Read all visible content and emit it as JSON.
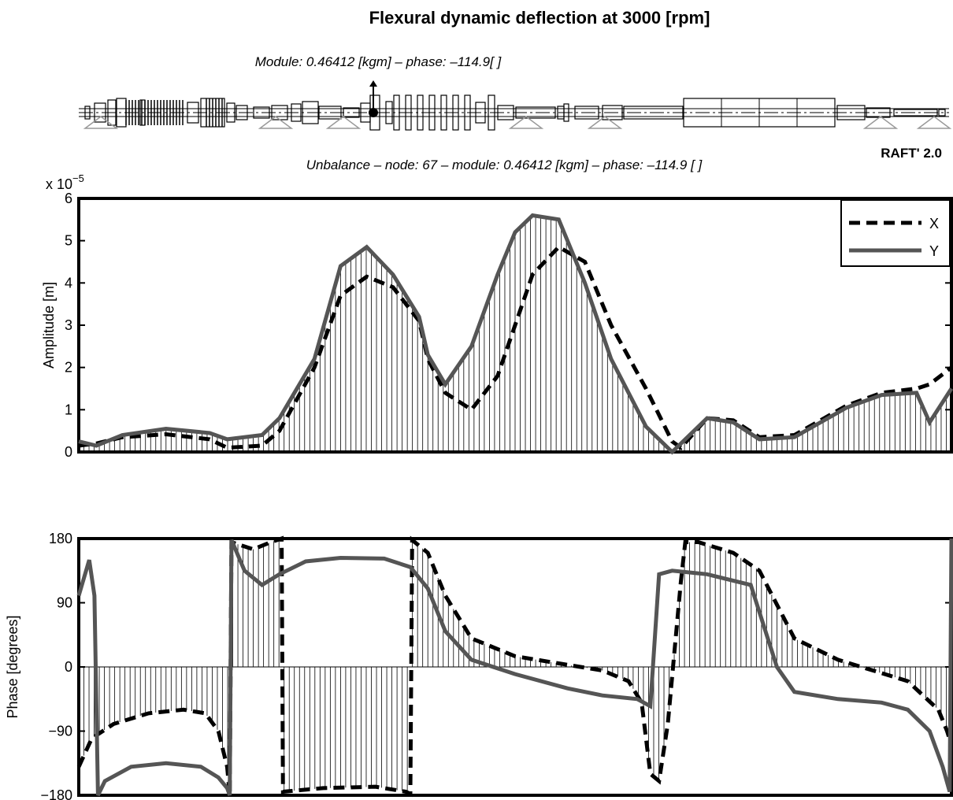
{
  "title": "Flexural dynamic deflection at 3000 [rpm]",
  "module_text": "Module: 0.46412 [kgm] – phase: –114.9[ ]",
  "unbalance_text": "Unbalance – node: 67 – module: 0.46412 [kgm] – phase: –114.9 [   ]",
  "brand": "RAFT' 2.0",
  "chart_data": [
    {
      "type": "line",
      "ylabel": "Amplitude [m]",
      "scale_label": "x 10",
      "scale_exponent": "−5",
      "ylim": [
        0,
        6
      ],
      "yticks": [
        "0",
        "1",
        "2",
        "3",
        "4",
        "5",
        "6"
      ],
      "legend": {
        "position": "top-right",
        "entries": [
          "X",
          "Y"
        ]
      },
      "x": [
        0,
        0.02,
        0.05,
        0.1,
        0.15,
        0.17,
        0.21,
        0.23,
        0.27,
        0.3,
        0.33,
        0.36,
        0.39,
        0.4,
        0.42,
        0.45,
        0.48,
        0.5,
        0.52,
        0.55,
        0.58,
        0.61,
        0.65,
        0.68,
        0.69,
        0.72,
        0.75,
        0.78,
        0.82,
        0.88,
        0.92,
        0.96,
        0.975,
        1.0
      ],
      "series": [
        {
          "name": "X",
          "style": "dashed",
          "color": "#000000",
          "values": [
            0.15,
            0.2,
            0.35,
            0.42,
            0.3,
            0.1,
            0.15,
            0.5,
            2.0,
            3.7,
            4.15,
            3.9,
            3.1,
            2.2,
            1.4,
            1.0,
            1.8,
            3.0,
            4.2,
            4.85,
            4.5,
            3.0,
            1.5,
            0.25,
            0.1,
            0.8,
            0.75,
            0.35,
            0.4,
            1.1,
            1.4,
            1.5,
            1.6,
            2.0
          ]
        },
        {
          "name": "Y",
          "style": "solid",
          "color": "#555555",
          "values": [
            0.25,
            0.15,
            0.4,
            0.55,
            0.45,
            0.3,
            0.4,
            0.8,
            2.2,
            4.4,
            4.85,
            4.2,
            3.2,
            2.3,
            1.6,
            2.5,
            4.2,
            5.2,
            5.6,
            5.5,
            4.0,
            2.2,
            0.6,
            0.0,
            0.2,
            0.8,
            0.7,
            0.3,
            0.35,
            1.05,
            1.35,
            1.4,
            0.7,
            1.5
          ]
        }
      ]
    },
    {
      "type": "line",
      "ylabel": "Phase  [degrees]",
      "ylim": [
        -180,
        180
      ],
      "yticks": [
        "−180",
        "−90",
        "0",
        "90",
        "180"
      ],
      "series": [
        {
          "name": "X",
          "style": "dashed",
          "color": "#000000",
          "points": [
            [
              0,
              -140
            ],
            [
              0.015,
              -100
            ],
            [
              0.04,
              -80
            ],
            [
              0.08,
              -65
            ],
            [
              0.12,
              -60
            ],
            [
              0.145,
              -65
            ],
            [
              0.16,
              -90
            ],
            [
              0.17,
              -140
            ],
            [
              0.173,
              -180
            ],
            [
              0.175,
              175
            ],
            [
              0.2,
              165
            ],
            [
              0.22,
              175
            ],
            [
              0.2325,
              180
            ],
            [
              0.234,
              -175
            ],
            [
              0.28,
              -170
            ],
            [
              0.34,
              -168
            ],
            [
              0.375,
              -175
            ],
            [
              0.38,
              -178
            ],
            [
              0.382,
              178
            ],
            [
              0.4,
              160
            ],
            [
              0.42,
              100
            ],
            [
              0.45,
              40
            ],
            [
              0.5,
              15
            ],
            [
              0.55,
              5
            ],
            [
              0.6,
              -5
            ],
            [
              0.63,
              -20
            ],
            [
              0.645,
              -50
            ],
            [
              0.655,
              -150
            ],
            [
              0.665,
              -160
            ],
            [
              0.675,
              -80
            ],
            [
              0.69,
              120
            ],
            [
              0.695,
              175
            ],
            [
              0.71,
              175
            ],
            [
              0.75,
              160
            ],
            [
              0.78,
              135
            ],
            [
              0.82,
              40
            ],
            [
              0.87,
              10
            ],
            [
              0.91,
              -5
            ],
            [
              0.95,
              -20
            ],
            [
              0.985,
              -60
            ],
            [
              0.995,
              -90
            ],
            [
              1.0,
              -110
            ]
          ]
        },
        {
          "name": "Y",
          "style": "solid",
          "color": "#555555",
          "points": [
            [
              0,
              100
            ],
            [
              0.012,
              150
            ],
            [
              0.018,
              100
            ],
            [
              0.022,
              -180
            ],
            [
              0.03,
              -160
            ],
            [
              0.06,
              -140
            ],
            [
              0.1,
              -135
            ],
            [
              0.14,
              -140
            ],
            [
              0.16,
              -155
            ],
            [
              0.17,
              -170
            ],
            [
              0.173,
              -180
            ],
            [
              0.175,
              178
            ],
            [
              0.19,
              135
            ],
            [
              0.21,
              115
            ],
            [
              0.23,
              130
            ],
            [
              0.26,
              148
            ],
            [
              0.3,
              153
            ],
            [
              0.35,
              152
            ],
            [
              0.38,
              140
            ],
            [
              0.4,
              110
            ],
            [
              0.42,
              50
            ],
            [
              0.45,
              10
            ],
            [
              0.5,
              -10
            ],
            [
              0.56,
              -30
            ],
            [
              0.6,
              -40
            ],
            [
              0.64,
              -45
            ],
            [
              0.655,
              -55
            ],
            [
              0.665,
              130
            ],
            [
              0.68,
              135
            ],
            [
              0.72,
              130
            ],
            [
              0.77,
              115
            ],
            [
              0.8,
              0
            ],
            [
              0.82,
              -35
            ],
            [
              0.87,
              -45
            ],
            [
              0.92,
              -50
            ],
            [
              0.95,
              -60
            ],
            [
              0.975,
              -90
            ],
            [
              0.99,
              -140
            ],
            [
              0.998,
              -175
            ],
            [
              1.0,
              180
            ]
          ]
        }
      ]
    }
  ]
}
